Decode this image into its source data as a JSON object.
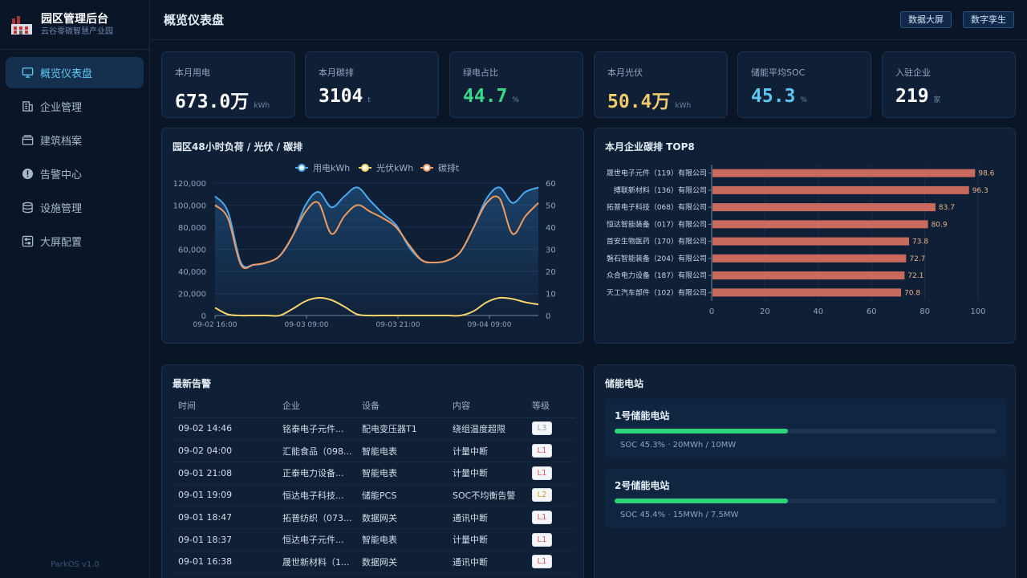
{
  "app": {
    "title": "园区管理后台",
    "subtitle": "云谷零碳智慧产业园",
    "version": "ParkOS v1.0"
  },
  "nav": [
    {
      "label": "概览仪表盘",
      "icon": "monitor-icon"
    },
    {
      "label": "企业管理",
      "icon": "building-icon"
    },
    {
      "label": "建筑档案",
      "icon": "folder-icon"
    },
    {
      "label": "告警中心",
      "icon": "alert-icon"
    },
    {
      "label": "设施管理",
      "icon": "database-icon"
    },
    {
      "label": "大屏配置",
      "icon": "settings-panel-icon"
    }
  ],
  "header": {
    "title": "概览仪表盘",
    "btn_bigscreen": "数据大屏",
    "btn_twin": "数字孪生"
  },
  "kpis": [
    {
      "label": "本月用电",
      "value": "673.0万",
      "unit": "kWh",
      "color": "#ffffff"
    },
    {
      "label": "本月碳排",
      "value": "3104",
      "unit": "t",
      "color": "#ffffff"
    },
    {
      "label": "绿电占比",
      "value": "44.7",
      "unit": "%",
      "color": "#3ad98a"
    },
    {
      "label": "本月光伏",
      "value": "50.4万",
      "unit": "kWh",
      "color": "#f2c96b"
    },
    {
      "label": "储能平均SOC",
      "value": "45.3",
      "unit": "%",
      "color": "#5cc8f2"
    },
    {
      "label": "入驻企业",
      "value": "219",
      "unit": "家",
      "color": "#ffffff"
    }
  ],
  "load_chart_title": "园区48小时负荷 / 光伏 / 碳排",
  "top8_title": "本月企业碳排 TOP8",
  "alerts_title": "最新告警",
  "storage_title": "储能电站",
  "chart_data": [
    {
      "type": "line",
      "title": "园区48小时负荷 / 光伏 / 碳排",
      "x_ticks": [
        "09-02 16:00",
        "09-03 09:00",
        "09-03 21:00",
        "09-04 09:00"
      ],
      "y_left_ticks": [
        "0",
        "20,000",
        "40,000",
        "60,000",
        "80,000",
        "100,000",
        "120,000"
      ],
      "y_right_ticks": [
        "0",
        "10",
        "20",
        "30",
        "40",
        "50",
        "60"
      ],
      "ylim_left": [
        0,
        120000
      ],
      "ylim_right": [
        0,
        60
      ],
      "legend_position": "top",
      "series": [
        {
          "name": "用电kWh",
          "axis": "left",
          "color": "#4aa8ee",
          "values": [
            108000,
            94000,
            48000,
            46000,
            48000,
            54000,
            72000,
            100000,
            112000,
            98000,
            108000,
            116000,
            104000,
            92000,
            82000,
            62000,
            50000,
            48000,
            50000,
            58000,
            80000,
            106000,
            116000,
            102000,
            112000,
            116000
          ]
        },
        {
          "name": "光伏kWh",
          "axis": "left",
          "color": "#f5d46c",
          "values": [
            7000,
            1000,
            0,
            0,
            0,
            0,
            6000,
            13000,
            16000,
            14000,
            8000,
            1000,
            0,
            0,
            0,
            0,
            0,
            0,
            0,
            0,
            4000,
            12000,
            16000,
            15000,
            12000,
            10000
          ]
        },
        {
          "name": "碳排t",
          "axis": "right",
          "color": "#f09a60",
          "values": [
            50,
            44,
            23,
            23,
            24,
            27,
            36,
            47,
            51,
            37,
            45,
            50,
            47,
            44,
            40,
            32,
            25,
            24,
            25,
            29,
            40,
            51,
            53,
            37,
            45,
            51
          ]
        }
      ]
    },
    {
      "type": "bar",
      "orientation": "horizontal",
      "title": "本月企业碳排 TOP8",
      "categories": [
        "晟世电子元件（119）有限公司",
        "搏联新材料（136）有限公司",
        "拓普电子科技（068）有限公司",
        "恒达智能装备（017）有限公司",
        "首安生物医药（170）有限公司",
        "磐石智能装备（204）有限公司",
        "众合电力设备（187）有限公司",
        "天工汽车部件（102）有限公司"
      ],
      "values": [
        98.6,
        96.3,
        83.7,
        80.9,
        73.8,
        72.7,
        72.1,
        70.8
      ],
      "xlim": [
        0,
        100
      ],
      "x_ticks": [
        "0",
        "20",
        "40",
        "60",
        "80",
        "100"
      ],
      "bar_color": "#c96a5e"
    }
  ],
  "alerts": {
    "columns": [
      "时间",
      "企业",
      "设备",
      "内容",
      "等级"
    ],
    "rows": [
      {
        "time": "09-02 14:46",
        "company": "铭泰电子元件...",
        "device": "配电变压器T1",
        "content": "绕组温度超限",
        "level": "L3",
        "level_color": "#9aa4b0"
      },
      {
        "time": "09-02 04:00",
        "company": "汇能食品（098...",
        "device": "智能电表",
        "content": "计量中断",
        "level": "L1",
        "level_color": "#e05a5a"
      },
      {
        "time": "09-01 21:08",
        "company": "正泰电力设备...",
        "device": "智能电表",
        "content": "计量中断",
        "level": "L1",
        "level_color": "#e05a5a"
      },
      {
        "time": "09-01 19:09",
        "company": "恒达电子科技...",
        "device": "储能PCS",
        "content": "SOC不均衡告警",
        "level": "L2",
        "level_color": "#d9a227"
      },
      {
        "time": "09-01 18:47",
        "company": "拓普纺织（073...",
        "device": "数据网关",
        "content": "通讯中断",
        "level": "L1",
        "level_color": "#e05a5a"
      },
      {
        "time": "09-01 18:37",
        "company": "恒达电子元件...",
        "device": "智能电表",
        "content": "计量中断",
        "level": "L1",
        "level_color": "#e05a5a"
      },
      {
        "time": "09-01 16:38",
        "company": "晟世新材料（1...",
        "device": "数据网关",
        "content": "通讯中断",
        "level": "L1",
        "level_color": "#e05a5a"
      }
    ]
  },
  "storage": [
    {
      "name": "1号储能电站",
      "soc": 0.453,
      "info": "SOC 45.3% · 20MWh / 10MW"
    },
    {
      "name": "2号储能电站",
      "soc": 0.454,
      "info": "SOC 45.4% · 15MWh / 7.5MW"
    }
  ]
}
